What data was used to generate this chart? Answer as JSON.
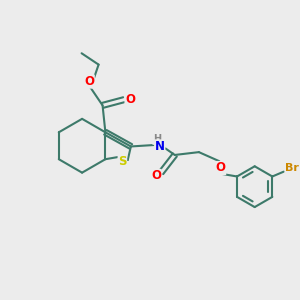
{
  "background_color": "#ececec",
  "bond_color": "#3d7a6a",
  "bond_width": 1.5,
  "atom_colors": {
    "O": "#ff0000",
    "N": "#0000ee",
    "S": "#cccc00",
    "Br": "#cc8800",
    "C": "#3d7a6a",
    "H": "#888888"
  },
  "figsize": [
    3.0,
    3.0
  ],
  "dpi": 100
}
